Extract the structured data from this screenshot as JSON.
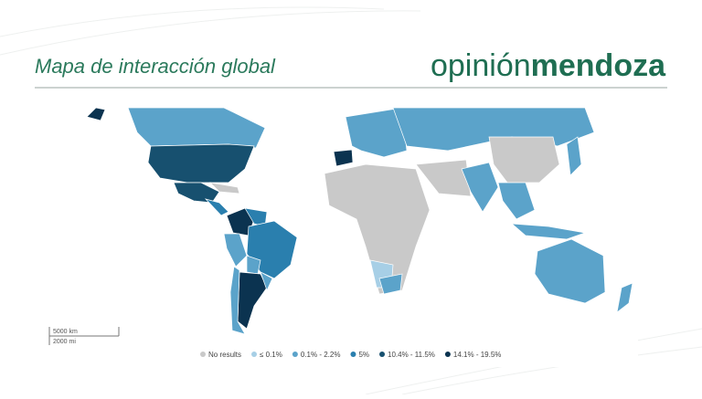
{
  "header": {
    "title": "Mapa de interacción global",
    "logo": {
      "light": "opinión",
      "bold": "mendoza"
    }
  },
  "map": {
    "scale": [
      "5000 km",
      "2000 mi"
    ],
    "legend": [
      {
        "label": "No results",
        "color": "#c9c9c9"
      },
      {
        "label": "≤ 0.1%",
        "color": "#a7cfe6"
      },
      {
        "label": "0.1% - 2.2%",
        "color": "#5ba3ca"
      },
      {
        "label": "5%",
        "color": "#2a7fae"
      },
      {
        "label": "10.4% - 11.5%",
        "color": "#17506f"
      },
      {
        "label": "14.1% - 19.5%",
        "color": "#0b3350"
      }
    ]
  }
}
